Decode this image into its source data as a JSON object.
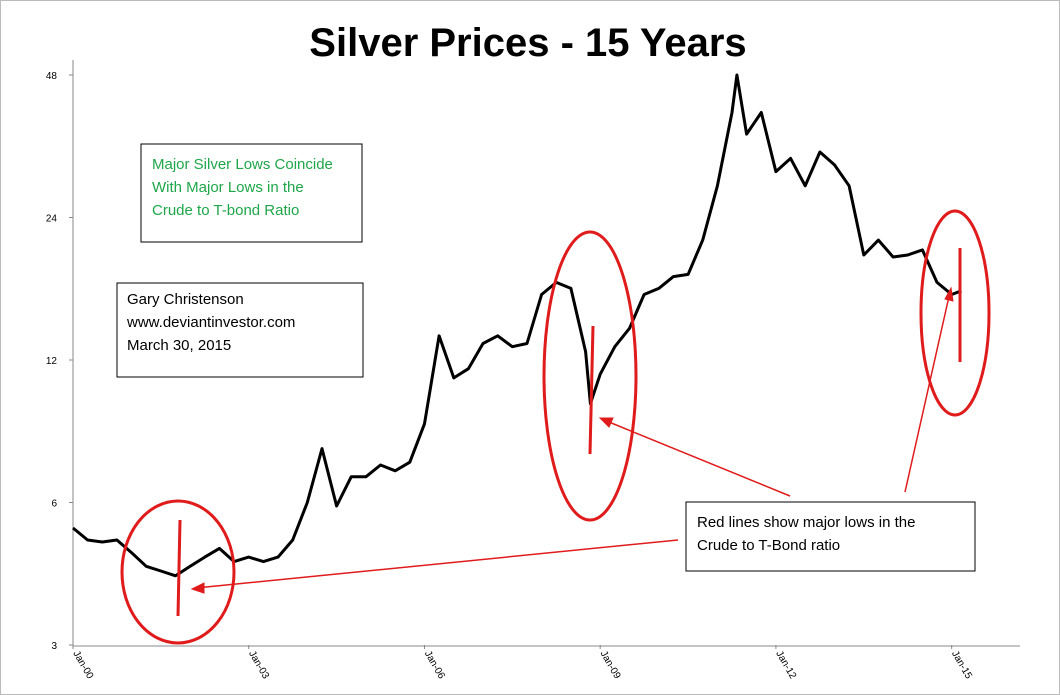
{
  "chart_data": {
    "type": "line",
    "title": "Silver Prices - 15 Years",
    "x": [
      "Jan-00",
      "Apr-00",
      "Jul-00",
      "Oct-00",
      "Jan-01",
      "Apr-01",
      "Jul-01",
      "Oct-01",
      "Jan-02",
      "Apr-02",
      "Jul-02",
      "Oct-02",
      "Jan-03",
      "Apr-03",
      "Jul-03",
      "Oct-03",
      "Jan-04",
      "Apr-04",
      "Jul-04",
      "Oct-04",
      "Jan-05",
      "Apr-05",
      "Jul-05",
      "Oct-05",
      "Jan-06",
      "Apr-06",
      "Jul-06",
      "Oct-06",
      "Jan-07",
      "Apr-07",
      "Jul-07",
      "Oct-07",
      "Jan-08",
      "Apr-08",
      "Jul-08",
      "Oct-08",
      "Nov-08",
      "Jan-09",
      "Apr-09",
      "Jul-09",
      "Oct-09",
      "Jan-10",
      "Apr-10",
      "Jul-10",
      "Oct-10",
      "Jan-11",
      "Apr-11",
      "May-11",
      "Jul-11",
      "Oct-11",
      "Jan-12",
      "Apr-12",
      "Jul-12",
      "Oct-12",
      "Jan-13",
      "Apr-13",
      "Jul-13",
      "Oct-13",
      "Jan-14",
      "Apr-14",
      "Jul-14",
      "Oct-14",
      "Jan-15",
      "Mar-15"
    ],
    "series": [
      {
        "name": "Silver",
        "color": "#000000",
        "values": [
          5.3,
          5.0,
          4.95,
          5.0,
          4.7,
          4.4,
          4.3,
          4.2,
          4.4,
          4.6,
          4.8,
          4.5,
          4.6,
          4.5,
          4.6,
          5.0,
          6.0,
          7.8,
          5.9,
          6.8,
          6.8,
          7.2,
          7.0,
          7.3,
          8.8,
          13.5,
          11.0,
          11.5,
          13.0,
          13.5,
          12.8,
          13.0,
          16.5,
          17.5,
          17.0,
          12.5,
          9.7,
          11.2,
          12.8,
          14.0,
          16.5,
          17.0,
          18.0,
          18.2,
          21.5,
          28.0,
          40.0,
          48.0,
          36.0,
          40.0,
          30.0,
          32.0,
          28.0,
          33.0,
          31.0,
          28.0,
          20.0,
          21.5,
          19.8,
          20.0,
          20.5,
          17.5,
          16.5,
          16.8
        ]
      }
    ],
    "xlim": [
      "Jan-00",
      "Mar-16"
    ],
    "xticks": [
      "Jan-00",
      "Jan-03",
      "Jan-06",
      "Jan-09",
      "Jan-12",
      "Jan-15"
    ],
    "ylim": [
      3,
      48
    ],
    "yticks": [
      3,
      6,
      12,
      24,
      48
    ],
    "log_scale": true,
    "annotations": {
      "note1": [
        "Major Silver Lows Coincide",
        "With Major Lows in the",
        "Crude to T-bond Ratio"
      ],
      "author": [
        "Gary Christenson",
        "www.deviantinvestor.com",
        "March 30, 2015"
      ],
      "note2": [
        "Red lines show major lows in the",
        "Crude to T-Bond ratio"
      ]
    }
  }
}
